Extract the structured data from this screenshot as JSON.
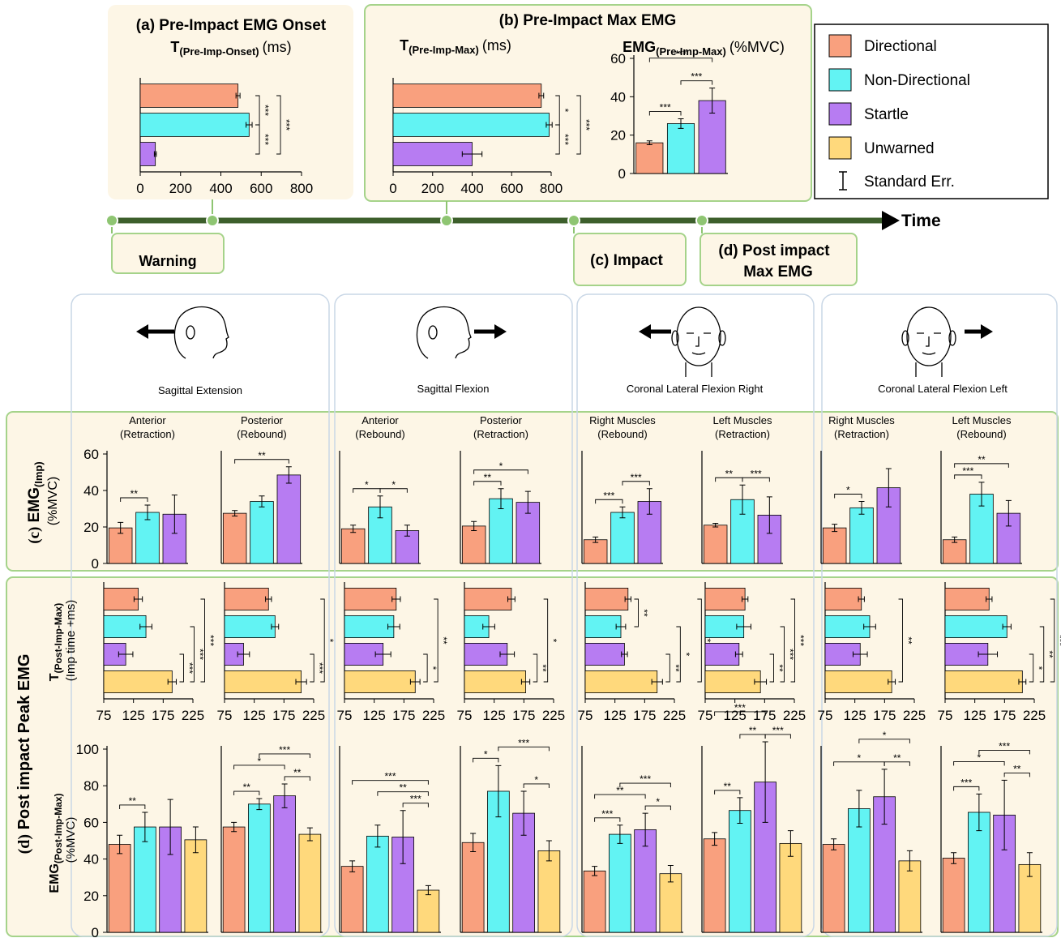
{
  "legend": {
    "items": [
      {
        "name": "Directional",
        "color": "#f9a07e"
      },
      {
        "name": "Non-Directional",
        "color": "#62f3f3"
      },
      {
        "name": "Startle",
        "color": "#b77cf2"
      },
      {
        "name": "Unwarned",
        "color": "#ffd97c"
      }
    ],
    "error_label": "Standard Err."
  },
  "timeline": {
    "axis_label": "Time",
    "warning": "Warning",
    "impact": "(c) Impact",
    "post_impact": [
      "(d) Post impact",
      "Max EMG"
    ]
  },
  "columns": [
    "Sagittal Extension",
    "Sagittal Flexion",
    "Coronal Lateral Flexion Right",
    "Coronal Lateral Flexion Left"
  ],
  "row_c_label": {
    "panel": "(c)",
    "main": "EMG",
    "sub": "(Imp)",
    "unit": "(%MVC)"
  },
  "row_d_label": {
    "panel": "(d)",
    "title": "Post impact Peak EMG",
    "timing": {
      "main": "T",
      "sub": "(Post-Imp-Max)",
      "unit": "(Imp time +ms)"
    },
    "emg": {
      "main": "EMG",
      "sub": "(Post-Imp-Max)",
      "unit": "(%MVC)"
    }
  },
  "chart_data": [
    {
      "type": "hbar",
      "title": "(a) Pre-Impact EMG Onset",
      "label": {
        "main": "T",
        "sub": "(Pre-Imp-Onset)",
        "unit": "(ms)"
      },
      "values": [
        485,
        540,
        75
      ],
      "errors": [
        10,
        15,
        5
      ],
      "xlim": [
        0,
        800
      ],
      "xticks": [
        0,
        200,
        400,
        600,
        800
      ],
      "annotations": [
        {
          "text": "***",
          "from": 0,
          "to": 1
        },
        {
          "text": "***",
          "from": 1,
          "to": 2
        },
        {
          "text": "***",
          "from": 0,
          "to": 2
        }
      ]
    },
    {
      "type": "hbar",
      "title": "(b)  Pre-Impact Max EMG",
      "label": {
        "main": "T",
        "sub": "(Pre-Imp-Max)",
        "unit": "(ms)"
      },
      "values": [
        750,
        790,
        400
      ],
      "errors": [
        12,
        15,
        50
      ],
      "xlim": [
        0,
        800
      ],
      "xticks": [
        0,
        200,
        400,
        600,
        800
      ],
      "annotations": [
        {
          "text": "*",
          "from": 0,
          "to": 1
        },
        {
          "text": "***",
          "from": 1,
          "to": 2
        },
        {
          "text": "***",
          "from": 0,
          "to": 2
        }
      ]
    },
    {
      "type": "bar",
      "label": {
        "main": "EMG",
        "sub": "(Pre-Imp-Max)",
        "unit": "(%MVC)"
      },
      "values": [
        16,
        26,
        38
      ],
      "errors": [
        1,
        2.5,
        6.5
      ],
      "ylim": [
        0,
        60
      ],
      "yticks": [
        0,
        20,
        40,
        60
      ],
      "annotations": [
        {
          "text": "***",
          "from": 0,
          "to": 1
        },
        {
          "text": "***",
          "from": 1,
          "to": 2
        },
        {
          "text": "***",
          "from": 0,
          "to": 2
        }
      ]
    },
    {
      "type": "bar",
      "title": "Anterior",
      "subtitle": "(Retraction)",
      "values": [
        19.5,
        28,
        27
      ],
      "errors": [
        3,
        4,
        10.5
      ],
      "ylim": [
        0,
        60
      ],
      "yticks": [
        0,
        20,
        40,
        60
      ],
      "annotations": [
        {
          "text": "**",
          "from": 0,
          "to": 1
        }
      ]
    },
    {
      "type": "bar",
      "title": "Posterior",
      "subtitle": "(Rebound)",
      "values": [
        27.5,
        34,
        48.5
      ],
      "errors": [
        1.5,
        3,
        4.5
      ],
      "ylim": [
        0,
        60
      ],
      "annotations": [
        {
          "text": "**",
          "from": 0,
          "to": 2
        }
      ]
    },
    {
      "type": "bar",
      "title": "Anterior",
      "subtitle": "(Rebound)",
      "values": [
        19,
        31,
        18
      ],
      "errors": [
        2,
        6,
        3
      ],
      "ylim": [
        0,
        60
      ],
      "annotations": [
        {
          "text": "*",
          "from": 0,
          "to": 1
        },
        {
          "text": "*",
          "from": 1,
          "to": 2
        }
      ]
    },
    {
      "type": "bar",
      "title": "Posterior",
      "subtitle": "(Retraction)",
      "values": [
        20.5,
        35.5,
        33.5
      ],
      "errors": [
        2.5,
        5.5,
        6
      ],
      "ylim": [
        0,
        60
      ],
      "annotations": [
        {
          "text": "**",
          "from": 0,
          "to": 1
        },
        {
          "text": "*",
          "from": 0,
          "to": 2
        }
      ]
    },
    {
      "type": "bar",
      "title": "Right Muscles",
      "subtitle": "(Rebound)",
      "values": [
        13,
        28,
        34
      ],
      "errors": [
        1.5,
        3,
        7
      ],
      "ylim": [
        0,
        60
      ],
      "annotations": [
        {
          "text": "***",
          "from": 0,
          "to": 1
        },
        {
          "text": "***",
          "from": 1,
          "to": 2
        }
      ]
    },
    {
      "type": "bar",
      "title": "Left Muscles",
      "subtitle": "(Retraction)",
      "values": [
        21,
        35,
        26.5
      ],
      "errors": [
        1,
        8,
        10
      ],
      "ylim": [
        0,
        60
      ],
      "annotations": [
        {
          "text": "**",
          "from": 0,
          "to": 1
        },
        {
          "text": "***",
          "from": 1,
          "to": 2
        }
      ]
    },
    {
      "type": "bar",
      "title": "Right Muscles",
      "subtitle": "(Retraction)",
      "values": [
        19.5,
        30.5,
        41.5
      ],
      "errors": [
        2,
        3.5,
        10.5
      ],
      "ylim": [
        0,
        60
      ],
      "annotations": [
        {
          "text": "*",
          "from": 0,
          "to": 1
        }
      ]
    },
    {
      "type": "bar",
      "title": "Left Muscles",
      "subtitle": "(Rebound)",
      "values": [
        13,
        38,
        27.5
      ],
      "errors": [
        1.5,
        6.5,
        7
      ],
      "ylim": [
        0,
        60
      ],
      "annotations": [
        {
          "text": "***",
          "from": 0,
          "to": 1
        },
        {
          "text": "**",
          "from": 0,
          "to": 2
        }
      ]
    },
    {
      "type": "hbar",
      "values": [
        133,
        146,
        112,
        190
      ],
      "errors": [
        7,
        10,
        12,
        7
      ],
      "xlim": [
        75,
        225
      ],
      "xticks": [
        75,
        125,
        175,
        225
      ],
      "annotations": [
        {
          "text": "***",
          "from": 2,
          "to": 3
        },
        {
          "text": "***",
          "from": 1,
          "to": 3
        },
        {
          "text": "***",
          "from": 0,
          "to": 3
        }
      ]
    },
    {
      "type": "hbar",
      "values": [
        149,
        160,
        107,
        204
      ],
      "errors": [
        5,
        6,
        10,
        9
      ],
      "xlim": [
        75,
        225
      ],
      "xticks": [
        75,
        125,
        175,
        225
      ],
      "annotations": [
        {
          "text": "***",
          "from": 2,
          "to": 3
        },
        {
          "text": "*",
          "from": 0,
          "to": 3
        }
      ]
    },
    {
      "type": "hbar",
      "values": [
        162,
        158,
        140,
        194
      ],
      "errors": [
        7,
        10,
        13,
        8
      ],
      "xlim": [
        75,
        225
      ],
      "xticks": [
        75,
        125,
        175,
        225
      ],
      "annotations": [
        {
          "text": "*",
          "from": 2,
          "to": 3
        },
        {
          "text": "**",
          "from": 0,
          "to": 3
        }
      ]
    },
    {
      "type": "hbar",
      "values": [
        154,
        116,
        147,
        178
      ],
      "errors": [
        6,
        10,
        12,
        7
      ],
      "xlim": [
        75,
        225
      ],
      "xticks": [
        75,
        125,
        175,
        225
      ],
      "annotations": [
        {
          "text": "**",
          "from": 2,
          "to": 3
        },
        {
          "text": "*",
          "from": 0,
          "to": 3
        }
      ]
    },
    {
      "type": "hbar",
      "values": [
        147,
        135,
        141,
        196
      ],
      "errors": [
        5,
        8,
        5,
        9
      ],
      "xlim": [
        75,
        225
      ],
      "xticks": [
        75,
        125,
        175,
        225
      ],
      "annotations": [
        {
          "text": "**",
          "from": 0,
          "to": 1
        },
        {
          "text": "**",
          "from": 2,
          "to": 3
        },
        {
          "text": "*",
          "from": 1,
          "to": 3
        },
        {
          "text": "***",
          "from": 0,
          "to": 3
        }
      ]
    },
    {
      "type": "hbar",
      "values": [
        142,
        140,
        132,
        168
      ],
      "errors": [
        5,
        12,
        6,
        10
      ],
      "xlim": [
        75,
        225
      ],
      "xticks": [
        75,
        125,
        175,
        225
      ],
      "annotations": [
        {
          "text": "**",
          "from": 2,
          "to": 3
        },
        {
          "text": "***",
          "from": 1,
          "to": 3
        },
        {
          "text": "***",
          "from": 0,
          "to": 3
        }
      ]
    },
    {
      "type": "hbar",
      "values": [
        136,
        150,
        134,
        187
      ],
      "errors": [
        5,
        10,
        12,
        6
      ],
      "xlim": [
        75,
        225
      ],
      "xticks": [
        75,
        125,
        175,
        225
      ],
      "annotations": [
        {
          "text": "**",
          "from": 0,
          "to": 3
        }
      ]
    },
    {
      "type": "hbar",
      "values": [
        149,
        179,
        147,
        205
      ],
      "errors": [
        5,
        7,
        16,
        6
      ],
      "xlim": [
        75,
        225
      ],
      "xticks": [
        75,
        125,
        175,
        225
      ],
      "annotations": [
        {
          "text": "*",
          "from": 2,
          "to": 3
        },
        {
          "text": "**",
          "from": 1,
          "to": 3
        },
        {
          "text": "***",
          "from": 0,
          "to": 3
        }
      ]
    },
    {
      "type": "bar",
      "values": [
        48,
        57.5,
        57.5,
        50.5
      ],
      "errors": [
        5,
        8,
        15,
        7
      ],
      "ylim": [
        0,
        100
      ],
      "yticks": [
        0,
        20,
        40,
        60,
        80,
        100
      ],
      "annotations": [
        {
          "text": "**",
          "from": 0,
          "to": 1
        }
      ]
    },
    {
      "type": "bar",
      "values": [
        57.5,
        70,
        74.5,
        53.5
      ],
      "errors": [
        2.5,
        3,
        6.5,
        3.5
      ],
      "ylim": [
        0,
        100
      ],
      "annotations": [
        {
          "text": "**",
          "from": 0,
          "to": 1
        },
        {
          "text": "**",
          "from": 2,
          "to": 3
        },
        {
          "text": "*",
          "from": 0,
          "to": 2
        },
        {
          "text": "***",
          "from": 1,
          "to": 3
        }
      ]
    },
    {
      "type": "bar",
      "values": [
        36,
        52.5,
        52,
        23
      ],
      "errors": [
        3,
        6,
        14.5,
        2.5
      ],
      "ylim": [
        0,
        100
      ],
      "annotations": [
        {
          "text": "***",
          "from": 2,
          "to": 3
        },
        {
          "text": "**",
          "from": 1,
          "to": 3
        },
        {
          "text": "***",
          "from": 0,
          "to": 3
        }
      ]
    },
    {
      "type": "bar",
      "values": [
        49,
        77,
        65,
        44.5
      ],
      "errors": [
        5,
        14,
        12,
        5.5
      ],
      "ylim": [
        0,
        100
      ],
      "annotations": [
        {
          "text": "*",
          "from": 0,
          "to": 1
        },
        {
          "text": "*",
          "from": 2,
          "to": 3
        },
        {
          "text": "***",
          "from": 1,
          "to": 3
        }
      ]
    },
    {
      "type": "bar",
      "values": [
        33.5,
        53.5,
        56,
        32
      ],
      "errors": [
        2.5,
        5,
        9,
        4.5
      ],
      "ylim": [
        0,
        100
      ],
      "annotations": [
        {
          "text": "***",
          "from": 0,
          "to": 1
        },
        {
          "text": "*",
          "from": 2,
          "to": 3
        },
        {
          "text": "**",
          "from": 0,
          "to": 2
        },
        {
          "text": "***",
          "from": 1,
          "to": 3
        }
      ]
    },
    {
      "type": "bar",
      "values": [
        51,
        66.5,
        82,
        48.5
      ],
      "errors": [
        3.5,
        7,
        22,
        7
      ],
      "ylim": [
        0,
        100
      ],
      "annotations": [
        {
          "text": "**",
          "from": 0,
          "to": 1
        },
        {
          "text": "**",
          "from": 1,
          "to": 2
        },
        {
          "text": "***",
          "from": 2,
          "to": 3
        },
        {
          "text": "***",
          "from": 0,
          "to": 2
        }
      ]
    },
    {
      "type": "bar",
      "values": [
        48,
        67.5,
        74,
        39
      ],
      "errors": [
        3,
        10,
        15,
        5.5
      ],
      "ylim": [
        0,
        100
      ],
      "annotations": [
        {
          "text": "**",
          "from": 2,
          "to": 3
        },
        {
          "text": "*",
          "from": 0,
          "to": 2
        },
        {
          "text": "*",
          "from": 1,
          "to": 3
        }
      ]
    },
    {
      "type": "bar",
      "values": [
        40.5,
        65.5,
        64,
        37
      ],
      "errors": [
        3,
        10,
        19,
        6.5
      ],
      "ylim": [
        0,
        100
      ],
      "annotations": [
        {
          "text": "***",
          "from": 0,
          "to": 1
        },
        {
          "text": "**",
          "from": 2,
          "to": 3
        },
        {
          "text": "*",
          "from": 0,
          "to": 2
        },
        {
          "text": "***",
          "from": 1,
          "to": 3
        }
      ]
    }
  ]
}
